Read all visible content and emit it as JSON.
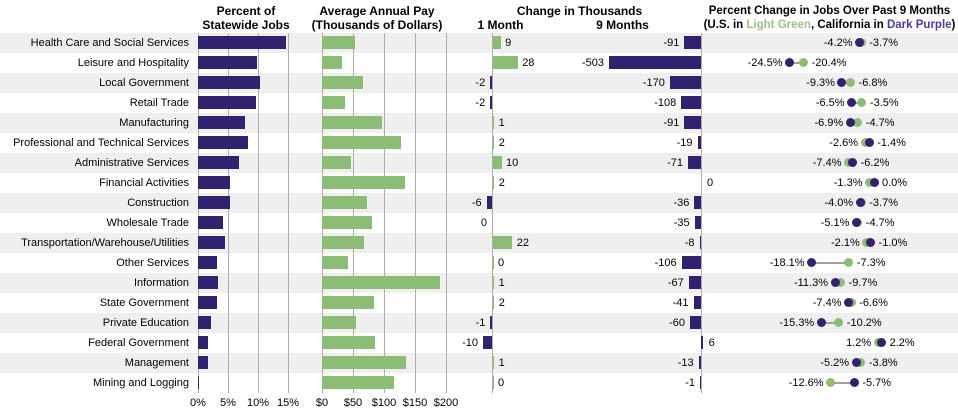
{
  "panels": {
    "share": {
      "line1": "Percent of",
      "line2": "Statewide Jobs"
    },
    "pay": {
      "line1": "Average Annual Pay",
      "line2": "(Thousands of Dollars)"
    },
    "change": {
      "title": "Change in Thousands",
      "sub1": "1 Month",
      "sub2": "9 Months"
    },
    "pct": {
      "title": "Percent Change in Jobs Over Past 9 Months",
      "sub_open": "(U.S. in ",
      "sub_green": "Light Green",
      "sub_mid": ", California in ",
      "sub_purple": "Dark Purple",
      "sub_close": ")"
    }
  },
  "axis_ticks": {
    "share": [
      "0%",
      "5%",
      "10%",
      "15%"
    ],
    "pay": [
      "$0",
      "$50",
      "$100",
      "$150",
      "$200"
    ]
  },
  "colors": {
    "california_purple": "#31216E",
    "us_green": "#8CBD76",
    "legend_green_text": "#9CC287",
    "legend_purple_text": "#4C3AA0",
    "row_stripe": "#EFEFEF",
    "gridline": "#ADADAD",
    "connector": "#A0A0A0"
  },
  "chart_data": {
    "type": "bar",
    "categories": [
      "Health Care and Social Services",
      "Leisure and Hospitality",
      "Local Government",
      "Retail Trade",
      "Manufacturing",
      "Professional and Technical Services",
      "Administrative Services",
      "Financial Activities",
      "Construction",
      "Wholesale Trade",
      "Transportation/Warehouse/Utilities",
      "Other Services",
      "Information",
      "State Government",
      "Private Education",
      "Federal Government",
      "Management",
      "Mining and Logging"
    ],
    "series": [
      {
        "name": "Percent of Statewide Jobs",
        "chart": "bar",
        "unit": "%",
        "axis_ticks": [
          0,
          5,
          10,
          15
        ],
        "values": [
          14.7,
          9.8,
          10.4,
          9.7,
          7.8,
          8.3,
          6.8,
          5.3,
          5.4,
          4.2,
          4.5,
          3.1,
          3.4,
          3.2,
          2.1,
          1.6,
          1.6,
          0.1
        ]
      },
      {
        "name": "Average Annual Pay (Thousands of Dollars)",
        "chart": "bar",
        "unit": "$ thousands",
        "axis_ticks": [
          0,
          50,
          100,
          150,
          200
        ],
        "values": [
          53,
          32,
          66,
          37,
          96,
          128,
          47,
          134,
          72,
          80,
          68,
          42,
          191,
          84,
          55,
          85,
          136,
          116
        ]
      },
      {
        "name": "Change in Thousands, 1 Month",
        "chart": "bar",
        "unit": "thousands of jobs",
        "values": [
          9,
          28,
          -2,
          -2,
          1,
          2,
          10,
          2,
          -6,
          0,
          22,
          0,
          1,
          2,
          -1,
          -10,
          1,
          0
        ],
        "label_side": [
          "right",
          "right",
          "left",
          "left",
          "right",
          "right",
          "right",
          "right",
          "left",
          "left",
          "right",
          "right",
          "right",
          "right",
          "left",
          "left",
          "right",
          "right"
        ]
      },
      {
        "name": "Change in Thousands, 9 Months",
        "chart": "bar",
        "unit": "thousands of jobs",
        "values": [
          -91,
          -503,
          -170,
          -108,
          -91,
          -19,
          -71,
          0,
          -36,
          -35,
          -8,
          -106,
          -67,
          -41,
          -60,
          6,
          -13,
          -1
        ]
      },
      {
        "name": "Percent Change in Jobs Over Past 9 Months, U.S. (Light Green)",
        "chart": "dot",
        "unit": "%",
        "values": [
          -3.7,
          -20.4,
          -6.8,
          -3.5,
          -4.7,
          -2.6,
          -7.4,
          -1.3,
          -3.7,
          -4.7,
          -2.1,
          -7.3,
          -9.7,
          -6.6,
          -10.2,
          1.2,
          -3.8,
          -12.6
        ]
      },
      {
        "name": "Percent Change in Jobs Over Past 9 Months, California (Dark Purple)",
        "chart": "dot",
        "unit": "%",
        "values": [
          -4.2,
          -24.5,
          -9.3,
          -6.5,
          -6.9,
          -1.4,
          -6.2,
          0.0,
          -4.0,
          -5.1,
          -1.0,
          -18.1,
          -11.3,
          -7.4,
          -15.3,
          2.2,
          -5.2,
          -5.7
        ]
      }
    ]
  }
}
